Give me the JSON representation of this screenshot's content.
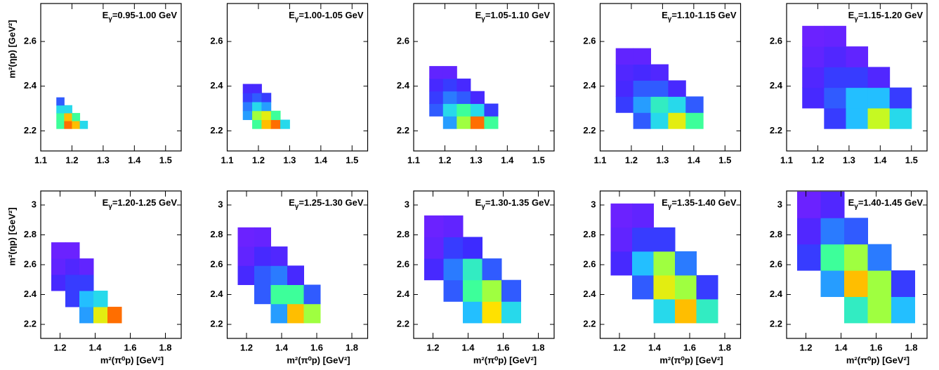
{
  "colormap": [
    "#7b1fff",
    "#3a2cff",
    "#2a7bff",
    "#21d0ff",
    "#3dff9a",
    "#b8ff2a",
    "#ffe100",
    "#ff8a00",
    "#ff0000"
  ],
  "chart_data": [
    {
      "type": "heatmap",
      "label": {
        "symbol": "E",
        "subscript": "γ",
        "text": "=0.95-1.00 GeV"
      },
      "ylabel": "m²(ηp)  [GeV²]",
      "xlim": [
        1.1,
        1.55
      ],
      "ylim": [
        2.11,
        2.77
      ],
      "xticks": [
        1.1,
        1.2,
        1.3,
        1.4,
        1.5
      ],
      "yticks": [
        2.2,
        2.4,
        2.6
      ],
      "x_bins": [
        1.15,
        1.175,
        1.2,
        1.225,
        1.25
      ],
      "y_bins": [
        2.21,
        2.245,
        2.28,
        2.315,
        2.35
      ],
      "z": [
        [
          0.5,
          0.9,
          0.8,
          0.4
        ],
        [
          0.5,
          0.8,
          0.5,
          null
        ],
        [
          0.4,
          0.4,
          null,
          null
        ],
        [
          0.2,
          null,
          null,
          null
        ]
      ]
    },
    {
      "type": "heatmap",
      "label": {
        "symbol": "E",
        "subscript": "γ",
        "text": "=1.00-1.05 GeV"
      },
      "xlim": [
        1.1,
        1.55
      ],
      "ylim": [
        2.11,
        2.77
      ],
      "xticks": [
        1.1,
        1.2,
        1.3,
        1.4,
        1.5
      ],
      "yticks": [
        2.2,
        2.4,
        2.6
      ],
      "x_bins": [
        1.15,
        1.18,
        1.21,
        1.24,
        1.27,
        1.3
      ],
      "y_bins": [
        2.21,
        2.25,
        2.29,
        2.33,
        2.37,
        2.41
      ],
      "z": [
        [
          null,
          0.5,
          0.8,
          0.9,
          0.4
        ],
        [
          0.3,
          0.6,
          0.7,
          0.5,
          null
        ],
        [
          0.25,
          0.4,
          0.3,
          null,
          null
        ],
        [
          0.15,
          0.2,
          0.15,
          null,
          null
        ],
        [
          0.1,
          0.1,
          null,
          null,
          null
        ]
      ]
    },
    {
      "type": "heatmap",
      "label": {
        "symbol": "E",
        "subscript": "γ",
        "text": "=1.05-1.10 GeV"
      },
      "xlim": [
        1.1,
        1.55
      ],
      "ylim": [
        2.11,
        2.77
      ],
      "xticks": [
        1.1,
        1.2,
        1.3,
        1.4,
        1.5
      ],
      "yticks": [
        2.2,
        2.4,
        2.6
      ],
      "x_bins": [
        1.15,
        1.194,
        1.238,
        1.282,
        1.326,
        1.37
      ],
      "y_bins": [
        2.21,
        2.266,
        2.322,
        2.378,
        2.434,
        2.49
      ],
      "z": [
        [
          null,
          0.3,
          0.6,
          0.9,
          0.5
        ],
        [
          0.2,
          0.4,
          0.5,
          0.4,
          0.15
        ],
        [
          0.15,
          0.25,
          0.2,
          0.1,
          null
        ],
        [
          0.1,
          0.15,
          0.1,
          null,
          null
        ],
        [
          0.05,
          0.05,
          null,
          null,
          null
        ]
      ]
    },
    {
      "type": "heatmap",
      "label": {
        "symbol": "E",
        "subscript": "γ",
        "text": "=1.10-1.15 GeV"
      },
      "xlim": [
        1.1,
        1.55
      ],
      "ylim": [
        2.11,
        2.77
      ],
      "xticks": [
        1.1,
        1.2,
        1.3,
        1.4,
        1.5
      ],
      "yticks": [
        2.2,
        2.4,
        2.6
      ],
      "x_bins": [
        1.15,
        1.206,
        1.262,
        1.318,
        1.374,
        1.43
      ],
      "y_bins": [
        2.21,
        2.282,
        2.354,
        2.426,
        2.498,
        2.57
      ],
      "z": [
        [
          null,
          0.2,
          0.4,
          0.7,
          0.5
        ],
        [
          0.15,
          0.3,
          0.45,
          0.4,
          0.2
        ],
        [
          0.1,
          0.2,
          0.2,
          0.1,
          null
        ],
        [
          0.08,
          0.1,
          0.08,
          null,
          null
        ],
        [
          0.05,
          0.05,
          null,
          null,
          null
        ]
      ]
    },
    {
      "type": "heatmap",
      "label": {
        "symbol": "E",
        "subscript": "γ",
        "text": "=1.15-1.20 GeV"
      },
      "xlim": [
        1.1,
        1.55
      ],
      "ylim": [
        2.11,
        2.77
      ],
      "xticks": [
        1.1,
        1.2,
        1.3,
        1.4,
        1.5
      ],
      "yticks": [
        2.2,
        2.4,
        2.6
      ],
      "x_bins": [
        1.15,
        1.22,
        1.29,
        1.36,
        1.43,
        1.5
      ],
      "y_bins": [
        2.21,
        2.302,
        2.394,
        2.486,
        2.578,
        2.67
      ],
      "z": [
        [
          null,
          0.15,
          0.35,
          0.65,
          0.4
        ],
        [
          0.1,
          0.2,
          0.35,
          0.35,
          0.15
        ],
        [
          0.08,
          0.15,
          0.15,
          0.08,
          null
        ],
        [
          0.05,
          0.08,
          0.05,
          null,
          null
        ],
        [
          0.03,
          0.04,
          null,
          null,
          null
        ]
      ]
    },
    {
      "type": "heatmap",
      "label": {
        "symbol": "E",
        "subscript": "γ",
        "text": "=1.20-1.25 GeV"
      },
      "ylabel": "m²(ηp)  [GeV²]",
      "xlabel": "m²(π⁰p)  [GeV²]",
      "xlim": [
        1.09,
        1.89
      ],
      "ylim": [
        2.106,
        3.094
      ],
      "xticks": [
        1.2,
        1.4,
        1.6,
        1.8
      ],
      "yticks": [
        2.2,
        2.4,
        2.6,
        2.8,
        3
      ],
      "x_bins": [
        1.15,
        1.23,
        1.31,
        1.39,
        1.47,
        1.55
      ],
      "y_bins": [
        2.21,
        2.318,
        2.426,
        2.534,
        2.642,
        2.75
      ],
      "z": [
        [
          null,
          null,
          0.3,
          0.7,
          0.9
        ],
        [
          null,
          0.15,
          0.35,
          0.4,
          null
        ],
        [
          0.1,
          0.15,
          0.15,
          null,
          null
        ],
        [
          0.05,
          0.08,
          0.05,
          null,
          null
        ],
        [
          0.03,
          0.03,
          null,
          null,
          null
        ]
      ]
    },
    {
      "type": "heatmap",
      "label": {
        "symbol": "E",
        "subscript": "γ",
        "text": "=1.25-1.30 GeV"
      },
      "xlabel": "m²(π⁰p)  [GeV²]",
      "xlim": [
        1.09,
        1.89
      ],
      "ylim": [
        2.106,
        3.094
      ],
      "xticks": [
        1.2,
        1.4,
        1.6,
        1.8
      ],
      "yticks": [
        2.2,
        2.4,
        2.6,
        2.8,
        3
      ],
      "x_bins": [
        1.15,
        1.244,
        1.338,
        1.432,
        1.526,
        1.62
      ],
      "y_bins": [
        2.21,
        2.338,
        2.466,
        2.594,
        2.722,
        2.85
      ],
      "z": [
        [
          null,
          null,
          0.3,
          0.8,
          0.6
        ],
        [
          null,
          0.2,
          0.5,
          0.5,
          0.2
        ],
        [
          0.1,
          0.2,
          0.25,
          0.1,
          null
        ],
        [
          0.05,
          0.1,
          0.08,
          null,
          null
        ],
        [
          0.03,
          0.04,
          null,
          null,
          null
        ]
      ]
    },
    {
      "type": "heatmap",
      "label": {
        "symbol": "E",
        "subscript": "γ",
        "text": "=1.30-1.35 GeV"
      },
      "xlabel": "m²(π⁰p)  [GeV²]",
      "xlim": [
        1.09,
        1.89
      ],
      "ylim": [
        2.106,
        3.094
      ],
      "xticks": [
        1.2,
        1.4,
        1.6,
        1.8
      ],
      "yticks": [
        2.2,
        2.4,
        2.6,
        2.8,
        3
      ],
      "x_bins": [
        1.15,
        1.26,
        1.37,
        1.48,
        1.59,
        1.7
      ],
      "y_bins": [
        2.21,
        2.354,
        2.498,
        2.642,
        2.786,
        2.93
      ],
      "z": [
        [
          null,
          null,
          0.35,
          0.75,
          0.4
        ],
        [
          null,
          0.2,
          0.5,
          0.6,
          0.2
        ],
        [
          0.1,
          0.25,
          0.45,
          0.2,
          null
        ],
        [
          0.05,
          0.15,
          0.12,
          null,
          null
        ],
        [
          0.03,
          0.05,
          null,
          null,
          null
        ]
      ]
    },
    {
      "type": "heatmap",
      "label": {
        "symbol": "E",
        "subscript": "γ",
        "text": "=1.35-1.40 GeV"
      },
      "xlabel": "m²(π⁰p)  [GeV²]",
      "xlim": [
        1.09,
        1.89
      ],
      "ylim": [
        2.106,
        3.094
      ],
      "xticks": [
        1.2,
        1.4,
        1.6,
        1.8
      ],
      "yticks": [
        2.2,
        2.4,
        2.6,
        2.8,
        3
      ],
      "x_bins": [
        1.15,
        1.272,
        1.394,
        1.516,
        1.638,
        1.76
      ],
      "y_bins": [
        2.21,
        2.37,
        2.53,
        2.69,
        2.85,
        3.01
      ],
      "z": [
        [
          null,
          null,
          0.4,
          0.8,
          0.45
        ],
        [
          null,
          0.2,
          0.7,
          0.6,
          0.15
        ],
        [
          0.1,
          0.35,
          0.6,
          0.25,
          null
        ],
        [
          0.05,
          0.15,
          0.15,
          null,
          null
        ],
        [
          0.03,
          0.05,
          null,
          null,
          null
        ]
      ]
    },
    {
      "type": "heatmap",
      "label": {
        "symbol": "E",
        "subscript": "γ",
        "text": "=1.40-1.45 GeV"
      },
      "xlabel": "m²(π⁰p)  [GeV²]",
      "xlim": [
        1.09,
        1.89
      ],
      "ylim": [
        2.106,
        3.094
      ],
      "xticks": [
        1.2,
        1.4,
        1.6,
        1.8
      ],
      "yticks": [
        2.2,
        2.4,
        2.6,
        2.8,
        3
      ],
      "x_bins": [
        1.15,
        1.284,
        1.418,
        1.552,
        1.686,
        1.82
      ],
      "y_bins": [
        2.21,
        2.386,
        2.562,
        2.738,
        2.914,
        3.09
      ],
      "z": [
        [
          null,
          null,
          0.45,
          0.6,
          0.35
        ],
        [
          null,
          0.3,
          0.8,
          0.6,
          0.15
        ],
        [
          0.15,
          0.5,
          0.6,
          0.25,
          null
        ],
        [
          0.08,
          0.25,
          0.2,
          null,
          null
        ],
        [
          0.03,
          0.08,
          null,
          null,
          null
        ]
      ]
    }
  ]
}
